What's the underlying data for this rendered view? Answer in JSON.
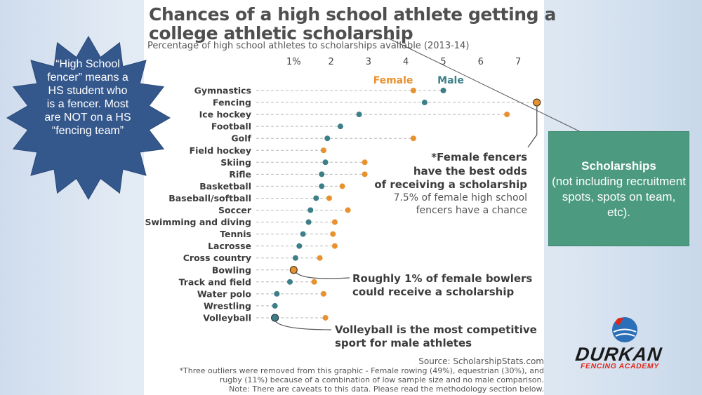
{
  "chart_data": {
    "type": "scatter",
    "title_line1": "Chances of a high school athlete getting a",
    "title_line2": "college athletic scholarship",
    "subtitle": "Percentage of high school athletes to scholarships available (2013-14)",
    "x_ticks": [
      "1%",
      "2",
      "3",
      "4",
      "5",
      "6",
      "7"
    ],
    "x_tick_values": [
      1,
      2,
      3,
      4,
      5,
      6,
      7
    ],
    "xlim": [
      0,
      7.5
    ],
    "legend": [
      {
        "name": "Female",
        "color": "#e8912f"
      },
      {
        "name": "Male",
        "color": "#3d7f88"
      }
    ],
    "categories": [
      "Gymnastics",
      "Fencing",
      "Ice hockey",
      "Football",
      "Golf",
      "Field hockey",
      "Skiing",
      "Rifle",
      "Basketball",
      "Baseball/softball",
      "Soccer",
      "Swimming and diving",
      "Tennis",
      "Lacrosse",
      "Cross country",
      "Bowling",
      "Track and field",
      "Water polo",
      "Wrestling",
      "Volleyball"
    ],
    "series": [
      {
        "name": "Female",
        "values": [
          4.2,
          7.5,
          6.7,
          null,
          4.2,
          1.8,
          2.9,
          2.9,
          2.3,
          1.95,
          2.45,
          2.1,
          2.05,
          2.1,
          1.7,
          1.0,
          1.55,
          1.8,
          null,
          1.85
        ]
      },
      {
        "name": "Male",
        "values": [
          5.0,
          4.5,
          2.75,
          2.25,
          1.9,
          null,
          1.85,
          1.75,
          1.75,
          1.6,
          1.45,
          1.4,
          1.25,
          1.15,
          1.05,
          null,
          0.9,
          0.55,
          0.5,
          0.5
        ]
      }
    ],
    "annotations": [
      {
        "lines": [
          "*Female fencers",
          "have the best odds",
          "of receiving a scholarship"
        ],
        "bold": true
      },
      {
        "lines": [
          "7.5% of female high school",
          "fencers have a chance"
        ],
        "bold": false
      },
      {
        "lines": [
          "Roughly 1% of female bowlers",
          "could receive a scholarship"
        ],
        "bold": true
      },
      {
        "lines": [
          "Volleyball is the most competitive",
          "sport for male athletes"
        ],
        "bold": true
      }
    ],
    "source": "Source: ScholarshipStats.com",
    "footnote_lines": [
      "*Three outliers were removed from this graphic - Female rowing (49%), equestrian (30%), and",
      "rugby (11%) because of a combination of low sample size and no male comparison.",
      "Note: There are caveats to this data. Please read the methodology section below."
    ]
  },
  "callout": {
    "star_text": "“High School fencer” means a HS student who is a fencer. Most are NOT on a HS “fencing team”",
    "box_heading": "Scholarships",
    "box_body": "(not including recruitment spots, spots on team, etc).",
    "star_color": "#34578c",
    "box_color": "#4c9a80"
  },
  "logo": {
    "name": "DURKAN",
    "tagline": "FENCING ACADEMY"
  }
}
